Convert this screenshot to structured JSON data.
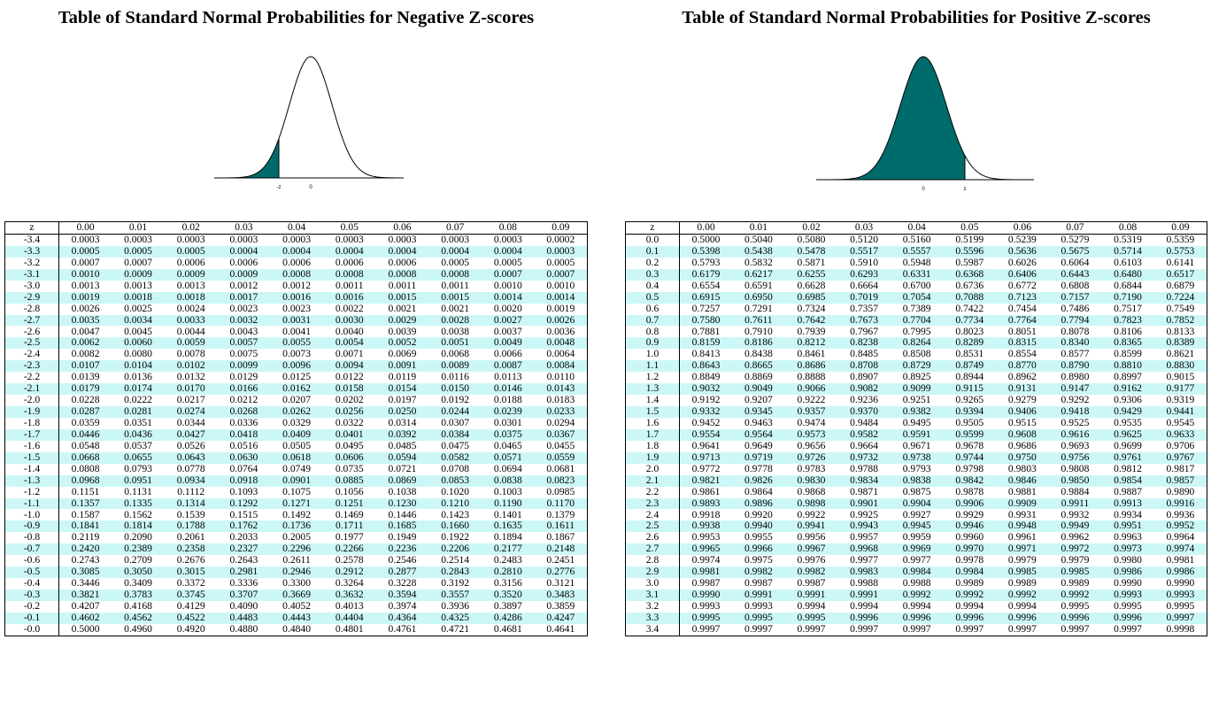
{
  "negative": {
    "title": "Table of Standard Normal Probabilities for Negative Z-scores",
    "axis_labels": [
      "-z",
      "0"
    ],
    "headers": [
      "z",
      "0.00",
      "0.01",
      "0.02",
      "0.03",
      "0.04",
      "0.05",
      "0.06",
      "0.07",
      "0.08",
      "0.09"
    ],
    "rows": [
      [
        "-3.4",
        "0.0003",
        "0.0003",
        "0.0003",
        "0.0003",
        "0.0003",
        "0.0003",
        "0.0003",
        "0.0003",
        "0.0003",
        "0.0002"
      ],
      [
        "-3.3",
        "0.0005",
        "0.0005",
        "0.0005",
        "0.0004",
        "0.0004",
        "0.0004",
        "0.0004",
        "0.0004",
        "0.0004",
        "0.0003"
      ],
      [
        "-3.2",
        "0.0007",
        "0.0007",
        "0.0006",
        "0.0006",
        "0.0006",
        "0.0006",
        "0.0006",
        "0.0005",
        "0.0005",
        "0.0005"
      ],
      [
        "-3.1",
        "0.0010",
        "0.0009",
        "0.0009",
        "0.0009",
        "0.0008",
        "0.0008",
        "0.0008",
        "0.0008",
        "0.0007",
        "0.0007"
      ],
      [
        "-3.0",
        "0.0013",
        "0.0013",
        "0.0013",
        "0.0012",
        "0.0012",
        "0.0011",
        "0.0011",
        "0.0011",
        "0.0010",
        "0.0010"
      ],
      [
        "-2.9",
        "0.0019",
        "0.0018",
        "0.0018",
        "0.0017",
        "0.0016",
        "0.0016",
        "0.0015",
        "0.0015",
        "0.0014",
        "0.0014"
      ],
      [
        "-2.8",
        "0.0026",
        "0.0025",
        "0.0024",
        "0.0023",
        "0.0023",
        "0.0022",
        "0.0021",
        "0.0021",
        "0.0020",
        "0.0019"
      ],
      [
        "-2.7",
        "0.0035",
        "0.0034",
        "0.0033",
        "0.0032",
        "0.0031",
        "0.0030",
        "0.0029",
        "0.0028",
        "0.0027",
        "0.0026"
      ],
      [
        "-2.6",
        "0.0047",
        "0.0045",
        "0.0044",
        "0.0043",
        "0.0041",
        "0.0040",
        "0.0039",
        "0.0038",
        "0.0037",
        "0.0036"
      ],
      [
        "-2.5",
        "0.0062",
        "0.0060",
        "0.0059",
        "0.0057",
        "0.0055",
        "0.0054",
        "0.0052",
        "0.0051",
        "0.0049",
        "0.0048"
      ],
      [
        "-2.4",
        "0.0082",
        "0.0080",
        "0.0078",
        "0.0075",
        "0.0073",
        "0.0071",
        "0.0069",
        "0.0068",
        "0.0066",
        "0.0064"
      ],
      [
        "-2.3",
        "0.0107",
        "0.0104",
        "0.0102",
        "0.0099",
        "0.0096",
        "0.0094",
        "0.0091",
        "0.0089",
        "0.0087",
        "0.0084"
      ],
      [
        "-2.2",
        "0.0139",
        "0.0136",
        "0.0132",
        "0.0129",
        "0.0125",
        "0.0122",
        "0.0119",
        "0.0116",
        "0.0113",
        "0.0110"
      ],
      [
        "-2.1",
        "0.0179",
        "0.0174",
        "0.0170",
        "0.0166",
        "0.0162",
        "0.0158",
        "0.0154",
        "0.0150",
        "0.0146",
        "0.0143"
      ],
      [
        "-2.0",
        "0.0228",
        "0.0222",
        "0.0217",
        "0.0212",
        "0.0207",
        "0.0202",
        "0.0197",
        "0.0192",
        "0.0188",
        "0.0183"
      ],
      [
        "-1.9",
        "0.0287",
        "0.0281",
        "0.0274",
        "0.0268",
        "0.0262",
        "0.0256",
        "0.0250",
        "0.0244",
        "0.0239",
        "0.0233"
      ],
      [
        "-1.8",
        "0.0359",
        "0.0351",
        "0.0344",
        "0.0336",
        "0.0329",
        "0.0322",
        "0.0314",
        "0.0307",
        "0.0301",
        "0.0294"
      ],
      [
        "-1.7",
        "0.0446",
        "0.0436",
        "0.0427",
        "0.0418",
        "0.0409",
        "0.0401",
        "0.0392",
        "0.0384",
        "0.0375",
        "0.0367"
      ],
      [
        "-1.6",
        "0.0548",
        "0.0537",
        "0.0526",
        "0.0516",
        "0.0505",
        "0.0495",
        "0.0485",
        "0.0475",
        "0.0465",
        "0.0455"
      ],
      [
        "-1.5",
        "0.0668",
        "0.0655",
        "0.0643",
        "0.0630",
        "0.0618",
        "0.0606",
        "0.0594",
        "0.0582",
        "0.0571",
        "0.0559"
      ],
      [
        "-1.4",
        "0.0808",
        "0.0793",
        "0.0778",
        "0.0764",
        "0.0749",
        "0.0735",
        "0.0721",
        "0.0708",
        "0.0694",
        "0.0681"
      ],
      [
        "-1.3",
        "0.0968",
        "0.0951",
        "0.0934",
        "0.0918",
        "0.0901",
        "0.0885",
        "0.0869",
        "0.0853",
        "0.0838",
        "0.0823"
      ],
      [
        "-1.2",
        "0.1151",
        "0.1131",
        "0.1112",
        "0.1093",
        "0.1075",
        "0.1056",
        "0.1038",
        "0.1020",
        "0.1003",
        "0.0985"
      ],
      [
        "-1.1",
        "0.1357",
        "0.1335",
        "0.1314",
        "0.1292",
        "0.1271",
        "0.1251",
        "0.1230",
        "0.1210",
        "0.1190",
        "0.1170"
      ],
      [
        "-1.0",
        "0.1587",
        "0.1562",
        "0.1539",
        "0.1515",
        "0.1492",
        "0.1469",
        "0.1446",
        "0.1423",
        "0.1401",
        "0.1379"
      ],
      [
        "-0.9",
        "0.1841",
        "0.1814",
        "0.1788",
        "0.1762",
        "0.1736",
        "0.1711",
        "0.1685",
        "0.1660",
        "0.1635",
        "0.1611"
      ],
      [
        "-0.8",
        "0.2119",
        "0.2090",
        "0.2061",
        "0.2033",
        "0.2005",
        "0.1977",
        "0.1949",
        "0.1922",
        "0.1894",
        "0.1867"
      ],
      [
        "-0.7",
        "0.2420",
        "0.2389",
        "0.2358",
        "0.2327",
        "0.2296",
        "0.2266",
        "0.2236",
        "0.2206",
        "0.2177",
        "0.2148"
      ],
      [
        "-0.6",
        "0.2743",
        "0.2709",
        "0.2676",
        "0.2643",
        "0.2611",
        "0.2578",
        "0.2546",
        "0.2514",
        "0.2483",
        "0.2451"
      ],
      [
        "-0.5",
        "0.3085",
        "0.3050",
        "0.3015",
        "0.2981",
        "0.2946",
        "0.2912",
        "0.2877",
        "0.2843",
        "0.2810",
        "0.2776"
      ],
      [
        "-0.4",
        "0.3446",
        "0.3409",
        "0.3372",
        "0.3336",
        "0.3300",
        "0.3264",
        "0.3228",
        "0.3192",
        "0.3156",
        "0.3121"
      ],
      [
        "-0.3",
        "0.3821",
        "0.3783",
        "0.3745",
        "0.3707",
        "0.3669",
        "0.3632",
        "0.3594",
        "0.3557",
        "0.3520",
        "0.3483"
      ],
      [
        "-0.2",
        "0.4207",
        "0.4168",
        "0.4129",
        "0.4090",
        "0.4052",
        "0.4013",
        "0.3974",
        "0.3936",
        "0.3897",
        "0.3859"
      ],
      [
        "-0.1",
        "0.4602",
        "0.4562",
        "0.4522",
        "0.4483",
        "0.4443",
        "0.4404",
        "0.4364",
        "0.4325",
        "0.4286",
        "0.4247"
      ],
      [
        "-0.0",
        "0.5000",
        "0.4960",
        "0.4920",
        "0.4880",
        "0.4840",
        "0.4801",
        "0.4761",
        "0.4721",
        "0.4681",
        "0.4641"
      ]
    ]
  },
  "positive": {
    "title": "Table of Standard Normal Probabilities for Positive Z-scores",
    "axis_labels": [
      "0",
      "z"
    ],
    "headers": [
      "z",
      "0.00",
      "0.01",
      "0.02",
      "0.03",
      "0.04",
      "0.05",
      "0.06",
      "0.07",
      "0.08",
      "0.09"
    ],
    "rows": [
      [
        "0.0",
        "0.5000",
        "0.5040",
        "0.5080",
        "0.5120",
        "0.5160",
        "0.5199",
        "0.5239",
        "0.5279",
        "0.5319",
        "0.5359"
      ],
      [
        "0.1",
        "0.5398",
        "0.5438",
        "0.5478",
        "0.5517",
        "0.5557",
        "0.5596",
        "0.5636",
        "0.5675",
        "0.5714",
        "0.5753"
      ],
      [
        "0.2",
        "0.5793",
        "0.5832",
        "0.5871",
        "0.5910",
        "0.5948",
        "0.5987",
        "0.6026",
        "0.6064",
        "0.6103",
        "0.6141"
      ],
      [
        "0.3",
        "0.6179",
        "0.6217",
        "0.6255",
        "0.6293",
        "0.6331",
        "0.6368",
        "0.6406",
        "0.6443",
        "0.6480",
        "0.6517"
      ],
      [
        "0.4",
        "0.6554",
        "0.6591",
        "0.6628",
        "0.6664",
        "0.6700",
        "0.6736",
        "0.6772",
        "0.6808",
        "0.6844",
        "0.6879"
      ],
      [
        "0.5",
        "0.6915",
        "0.6950",
        "0.6985",
        "0.7019",
        "0.7054",
        "0.7088",
        "0.7123",
        "0.7157",
        "0.7190",
        "0.7224"
      ],
      [
        "0.6",
        "0.7257",
        "0.7291",
        "0.7324",
        "0.7357",
        "0.7389",
        "0.7422",
        "0.7454",
        "0.7486",
        "0.7517",
        "0.7549"
      ],
      [
        "0.7",
        "0.7580",
        "0.7611",
        "0.7642",
        "0.7673",
        "0.7704",
        "0.7734",
        "0.7764",
        "0.7794",
        "0.7823",
        "0.7852"
      ],
      [
        "0.8",
        "0.7881",
        "0.7910",
        "0.7939",
        "0.7967",
        "0.7995",
        "0.8023",
        "0.8051",
        "0.8078",
        "0.8106",
        "0.8133"
      ],
      [
        "0.9",
        "0.8159",
        "0.8186",
        "0.8212",
        "0.8238",
        "0.8264",
        "0.8289",
        "0.8315",
        "0.8340",
        "0.8365",
        "0.8389"
      ],
      [
        "1.0",
        "0.8413",
        "0.8438",
        "0.8461",
        "0.8485",
        "0.8508",
        "0.8531",
        "0.8554",
        "0.8577",
        "0.8599",
        "0.8621"
      ],
      [
        "1.1",
        "0.8643",
        "0.8665",
        "0.8686",
        "0.8708",
        "0.8729",
        "0.8749",
        "0.8770",
        "0.8790",
        "0.8810",
        "0.8830"
      ],
      [
        "1.2",
        "0.8849",
        "0.8869",
        "0.8888",
        "0.8907",
        "0.8925",
        "0.8944",
        "0.8962",
        "0.8980",
        "0.8997",
        "0.9015"
      ],
      [
        "1.3",
        "0.9032",
        "0.9049",
        "0.9066",
        "0.9082",
        "0.9099",
        "0.9115",
        "0.9131",
        "0.9147",
        "0.9162",
        "0.9177"
      ],
      [
        "1.4",
        "0.9192",
        "0.9207",
        "0.9222",
        "0.9236",
        "0.9251",
        "0.9265",
        "0.9279",
        "0.9292",
        "0.9306",
        "0.9319"
      ],
      [
        "1.5",
        "0.9332",
        "0.9345",
        "0.9357",
        "0.9370",
        "0.9382",
        "0.9394",
        "0.9406",
        "0.9418",
        "0.9429",
        "0.9441"
      ],
      [
        "1.6",
        "0.9452",
        "0.9463",
        "0.9474",
        "0.9484",
        "0.9495",
        "0.9505",
        "0.9515",
        "0.9525",
        "0.9535",
        "0.9545"
      ],
      [
        "1.7",
        "0.9554",
        "0.9564",
        "0.9573",
        "0.9582",
        "0.9591",
        "0.9599",
        "0.9608",
        "0.9616",
        "0.9625",
        "0.9633"
      ],
      [
        "1.8",
        "0.9641",
        "0.9649",
        "0.9656",
        "0.9664",
        "0.9671",
        "0.9678",
        "0.9686",
        "0.9693",
        "0.9699",
        "0.9706"
      ],
      [
        "1.9",
        "0.9713",
        "0.9719",
        "0.9726",
        "0.9732",
        "0.9738",
        "0.9744",
        "0.9750",
        "0.9756",
        "0.9761",
        "0.9767"
      ],
      [
        "2.0",
        "0.9772",
        "0.9778",
        "0.9783",
        "0.9788",
        "0.9793",
        "0.9798",
        "0.9803",
        "0.9808",
        "0.9812",
        "0.9817"
      ],
      [
        "2.1",
        "0.9821",
        "0.9826",
        "0.9830",
        "0.9834",
        "0.9838",
        "0.9842",
        "0.9846",
        "0.9850",
        "0.9854",
        "0.9857"
      ],
      [
        "2.2",
        "0.9861",
        "0.9864",
        "0.9868",
        "0.9871",
        "0.9875",
        "0.9878",
        "0.9881",
        "0.9884",
        "0.9887",
        "0.9890"
      ],
      [
        "2.3",
        "0.9893",
        "0.9896",
        "0.9898",
        "0.9901",
        "0.9904",
        "0.9906",
        "0.9909",
        "0.9911",
        "0.9913",
        "0.9916"
      ],
      [
        "2.4",
        "0.9918",
        "0.9920",
        "0.9922",
        "0.9925",
        "0.9927",
        "0.9929",
        "0.9931",
        "0.9932",
        "0.9934",
        "0.9936"
      ],
      [
        "2.5",
        "0.9938",
        "0.9940",
        "0.9941",
        "0.9943",
        "0.9945",
        "0.9946",
        "0.9948",
        "0.9949",
        "0.9951",
        "0.9952"
      ],
      [
        "2.6",
        "0.9953",
        "0.9955",
        "0.9956",
        "0.9957",
        "0.9959",
        "0.9960",
        "0.9961",
        "0.9962",
        "0.9963",
        "0.9964"
      ],
      [
        "2.7",
        "0.9965",
        "0.9966",
        "0.9967",
        "0.9968",
        "0.9969",
        "0.9970",
        "0.9971",
        "0.9972",
        "0.9973",
        "0.9974"
      ],
      [
        "2.8",
        "0.9974",
        "0.9975",
        "0.9976",
        "0.9977",
        "0.9977",
        "0.9978",
        "0.9979",
        "0.9979",
        "0.9980",
        "0.9981"
      ],
      [
        "2.9",
        "0.9981",
        "0.9982",
        "0.9982",
        "0.9983",
        "0.9984",
        "0.9984",
        "0.9985",
        "0.9985",
        "0.9986",
        "0.9986"
      ],
      [
        "3.0",
        "0.9987",
        "0.9987",
        "0.9987",
        "0.9988",
        "0.9988",
        "0.9989",
        "0.9989",
        "0.9989",
        "0.9990",
        "0.9990"
      ],
      [
        "3.1",
        "0.9990",
        "0.9991",
        "0.9991",
        "0.9991",
        "0.9992",
        "0.9992",
        "0.9992",
        "0.9992",
        "0.9993",
        "0.9993"
      ],
      [
        "3.2",
        "0.9993",
        "0.9993",
        "0.9994",
        "0.9994",
        "0.9994",
        "0.9994",
        "0.9994",
        "0.9995",
        "0.9995",
        "0.9995"
      ],
      [
        "3.3",
        "0.9995",
        "0.9995",
        "0.9995",
        "0.9996",
        "0.9996",
        "0.9996",
        "0.9996",
        "0.9996",
        "0.9996",
        "0.9997"
      ],
      [
        "3.4",
        "0.9997",
        "0.9997",
        "0.9997",
        "0.9997",
        "0.9997",
        "0.9997",
        "0.9997",
        "0.9997",
        "0.9997",
        "0.9998"
      ]
    ]
  },
  "colors": {
    "fill": "#006b6b",
    "row_shade": "#ccf7f7"
  },
  "shading": {
    "negative_cut_z": -1.5,
    "positive_cut_z": 1.0
  }
}
